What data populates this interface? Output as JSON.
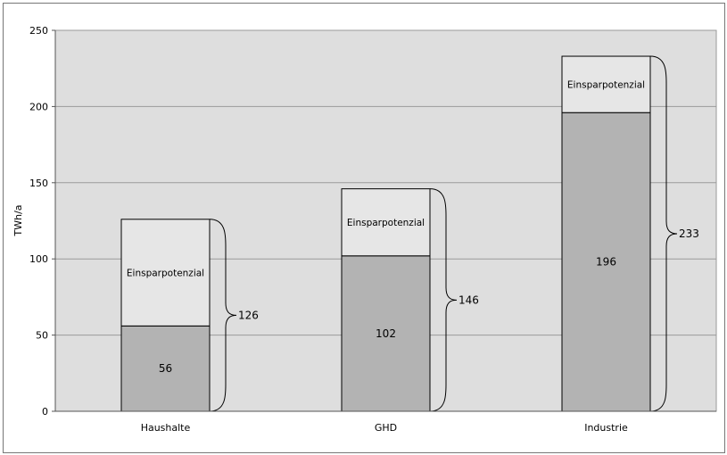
{
  "chart_data": {
    "type": "bar",
    "stacked": true,
    "categories": [
      "Haushalte",
      "GHD",
      "Industrie"
    ],
    "series": [
      {
        "values": [
          56,
          102,
          196
        ],
        "labels": [
          "56",
          "102",
          "196"
        ],
        "color": "#b3b3b3"
      },
      {
        "values": [
          70,
          44,
          37
        ],
        "labels": [
          "Einsparpotenzial",
          "Einsparpotenzial",
          "Einsparpotenzial"
        ],
        "color": "#e6e6e6"
      }
    ],
    "totals": [
      126,
      146,
      233
    ],
    "ylabel": "TWh/a",
    "xlabel": "",
    "title": "",
    "ylim": [
      0,
      250
    ],
    "yticks": [
      0,
      50,
      100,
      150,
      200,
      250
    ],
    "grid": true,
    "legend": "none",
    "plot_background": "#dedede"
  }
}
